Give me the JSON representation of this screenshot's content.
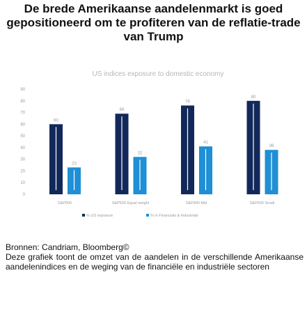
{
  "title": "De brede Amerikaanse aandelenmarkt is goed gepositioneerd om te profiteren van de reflatie-trade van Trump",
  "chart_data": {
    "type": "bar",
    "title": "US indices exposure to domestic economy",
    "categories": [
      "S&P500",
      "S&P500 Equal weight",
      "S&P400 Mid",
      "S&P600 Small"
    ],
    "series": [
      {
        "name": "% US exposure",
        "color": "#13285a",
        "values": [
          60,
          69,
          76,
          80
        ]
      },
      {
        "name": "% in Financials & Industrials",
        "color": "#1f8fd6",
        "values": [
          23,
          32,
          41,
          38
        ]
      }
    ],
    "ylim": [
      0,
      90
    ],
    "yticks": [
      0,
      10,
      20,
      30,
      40,
      50,
      60,
      70,
      80,
      90
    ],
    "grid": false,
    "legend_position": "bottom"
  },
  "source": "Bronnen: Candriam, Bloomberg©",
  "description": "Deze grafiek toont de omzet van de aandelen in de verschillende Amerikaanse aandelenindices en de weging van de financiële en industriële sectoren"
}
